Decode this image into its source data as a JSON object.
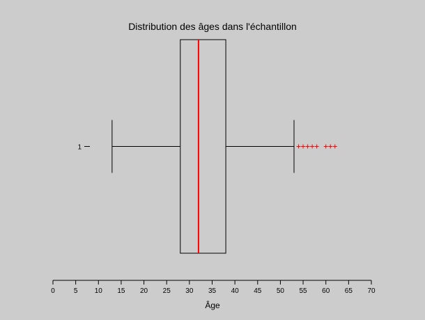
{
  "chart_data": {
    "type": "boxplot",
    "title": "Distribution des âges dans l'échantillon",
    "xlabel": "Âge",
    "ylabel": "",
    "orientation": "horizontal",
    "xlim": [
      0,
      70
    ],
    "xticks": [
      0,
      5,
      10,
      15,
      20,
      25,
      30,
      35,
      40,
      45,
      50,
      55,
      60,
      65,
      70
    ],
    "grid": false,
    "categories": [
      "1"
    ],
    "boxes": [
      {
        "label": "1",
        "whisker_low": 13,
        "q1": 28,
        "median": 32,
        "q3": 38,
        "whisker_high": 53,
        "outliers": [
          54,
          55,
          56,
          57,
          58,
          60,
          61,
          62
        ]
      }
    ],
    "colors": {
      "background": "#cccccc",
      "box": "#000000",
      "median": "#ff0000",
      "outlier": "#ff0000"
    }
  }
}
